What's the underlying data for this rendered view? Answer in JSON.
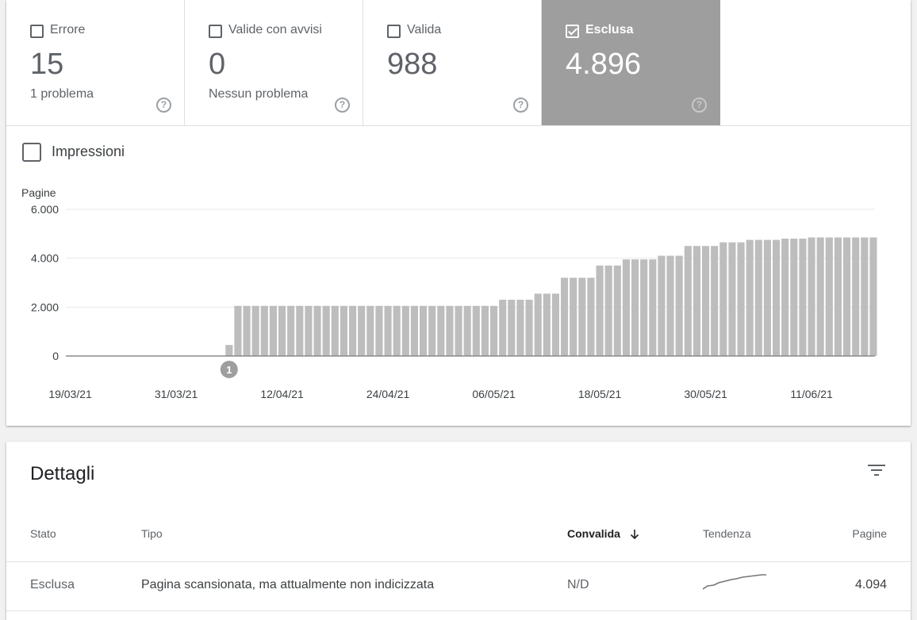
{
  "tiles": [
    {
      "label": "Errore",
      "value": "15",
      "sub": "1 problema",
      "checked": false
    },
    {
      "label": "Valide con avvisi",
      "value": "0",
      "sub": "Nessun problema",
      "checked": false
    },
    {
      "label": "Valida",
      "value": "988",
      "sub": "",
      "checked": false
    },
    {
      "label": "Esclusa",
      "value": "4.896",
      "sub": "",
      "checked": true
    }
  ],
  "help_glyph": "?",
  "impressions_label": "Impressioni",
  "chart_data": {
    "type": "bar",
    "ylabel": "Pagine",
    "ylim": [
      0,
      6000
    ],
    "yticks": [
      0,
      2000,
      4000,
      6000
    ],
    "ytick_labels": [
      "0",
      "2.000",
      "4.000",
      "6.000"
    ],
    "xtick_labels": [
      "19/03/21",
      "31/03/21",
      "12/04/21",
      "24/04/21",
      "06/05/21",
      "18/05/21",
      "30/05/21",
      "11/06/21"
    ],
    "xtick_days": [
      0,
      12,
      24,
      36,
      48,
      60,
      72,
      84
    ],
    "bar_color": "#bdbdbd",
    "annotation": {
      "label": "1",
      "day": 18
    },
    "values": [
      0,
      0,
      0,
      0,
      0,
      0,
      0,
      0,
      0,
      0,
      0,
      0,
      0,
      0,
      0,
      0,
      0,
      0,
      450,
      2050,
      2050,
      2050,
      2050,
      2050,
      2050,
      2050,
      2050,
      2050,
      2050,
      2050,
      2050,
      2050,
      2050,
      2050,
      2050,
      2050,
      2050,
      2050,
      2050,
      2050,
      2050,
      2050,
      2050,
      2050,
      2050,
      2050,
      2050,
      2050,
      2050,
      2300,
      2300,
      2300,
      2300,
      2550,
      2550,
      2550,
      3200,
      3200,
      3200,
      3200,
      3700,
      3700,
      3700,
      3950,
      3950,
      3950,
      3950,
      4100,
      4100,
      4100,
      4500,
      4500,
      4500,
      4500,
      4650,
      4650,
      4650,
      4750,
      4750,
      4750,
      4750,
      4800,
      4800,
      4800,
      4850,
      4850,
      4850,
      4850,
      4850,
      4850,
      4850,
      4850
    ]
  },
  "details": {
    "title": "Dettagli",
    "columns": {
      "stato": "Stato",
      "tipo": "Tipo",
      "convalida": "Convalida",
      "tendenza": "Tendenza",
      "pagine": "Pagine"
    },
    "rows": [
      {
        "stato": "Esclusa",
        "tipo": "Pagina scansionata, ma attualmente non indicizzata",
        "convalida": "N/D",
        "pagine": "4.094"
      }
    ]
  }
}
